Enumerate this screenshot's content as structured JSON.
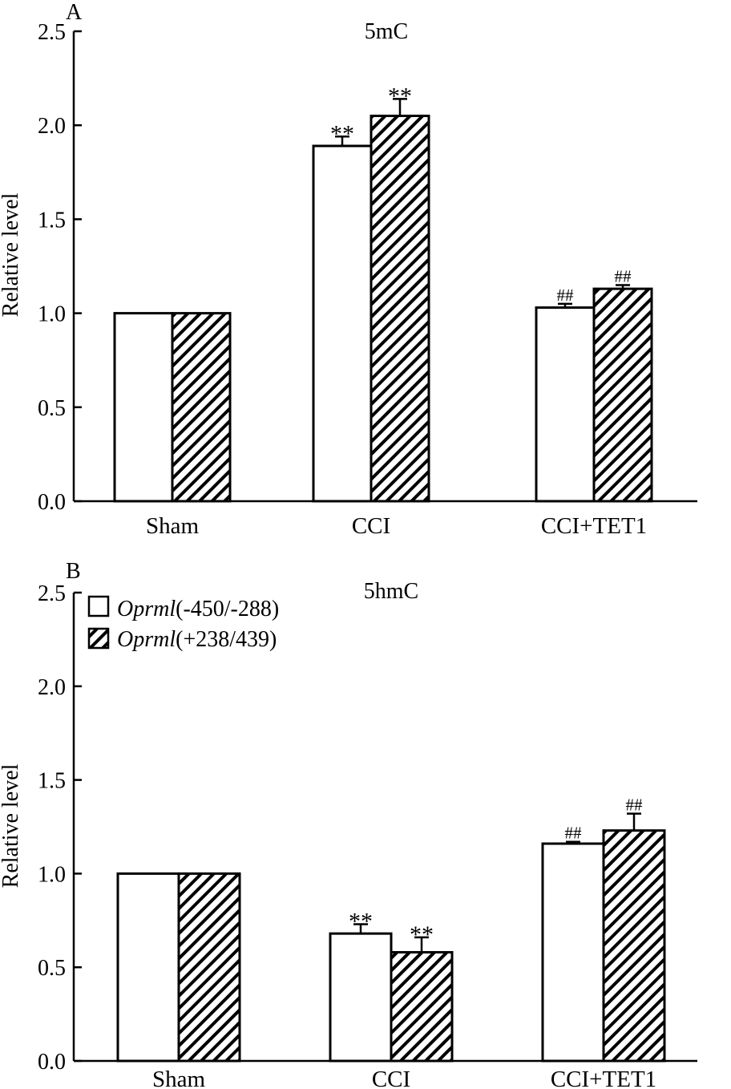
{
  "colors": {
    "ink": "#000000",
    "open_fill": "#ffffff"
  },
  "legend": {
    "items": [
      {
        "italic": "Oprml",
        "rest": "(-450/-288)",
        "pattern": "open"
      },
      {
        "italic": "Oprml",
        "rest": "(+238/439)",
        "pattern": "hatched"
      }
    ]
  },
  "chart_data": [
    {
      "type": "bar",
      "panel": "A",
      "title": "5mC",
      "ylabel": "Relative level",
      "xlabel": "",
      "ylim": [
        0,
        2.5
      ],
      "yticks": [
        "0.0",
        "0.5",
        "1.0",
        "1.5",
        "2.0",
        "2.5"
      ],
      "categories": [
        "Sham",
        "CCI",
        "CCI+TET1"
      ],
      "series": [
        {
          "name": "Oprml(-450/-288)",
          "pattern": "open",
          "values": [
            1.0,
            1.89,
            1.03
          ],
          "errors": [
            0,
            0.05,
            0.02
          ],
          "significance": [
            "",
            "**",
            "##"
          ]
        },
        {
          "name": "Oprml(+238/439)",
          "pattern": "hatched",
          "values": [
            1.0,
            2.05,
            1.13
          ],
          "errors": [
            0,
            0.09,
            0.02
          ],
          "significance": [
            "",
            "**",
            "##"
          ]
        }
      ]
    },
    {
      "type": "bar",
      "panel": "B",
      "title": "5hmC",
      "ylabel": "Relative level",
      "xlabel": "",
      "ylim": [
        0,
        2.5
      ],
      "yticks": [
        "0.0",
        "0.5",
        "1.0",
        "1.5",
        "2.0",
        "2.5"
      ],
      "categories": [
        "Sham",
        "CCI",
        "CCI+TET1"
      ],
      "series": [
        {
          "name": "Oprml(-450/-288)",
          "pattern": "open",
          "values": [
            1.0,
            0.68,
            1.16
          ],
          "errors": [
            0,
            0.05,
            0.01
          ],
          "significance": [
            "",
            "**",
            "##"
          ]
        },
        {
          "name": "Oprml(+238/439)",
          "pattern": "hatched",
          "values": [
            1.0,
            0.58,
            1.23
          ],
          "errors": [
            0,
            0.08,
            0.09
          ],
          "significance": [
            "",
            "**",
            "##"
          ]
        }
      ]
    }
  ]
}
